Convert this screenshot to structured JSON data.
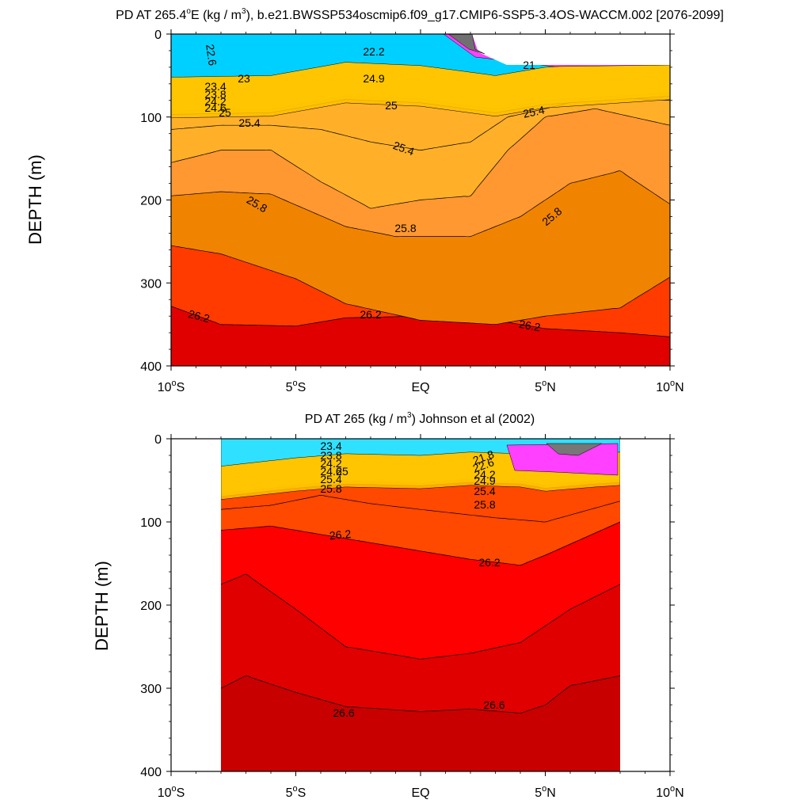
{
  "chart_data": [
    {
      "type": "contour",
      "title_prefix": "PD AT 265.4",
      "title_deg": "o",
      "title_main": "E (kg / m",
      "title_sup": "3",
      "title_suffix": "), b.e21.BWSSP534oscmip6.f09_g17.CMIP6-SSP5-3.4OS-WACCM.002 [2076-2099]",
      "ylabel": "DEPTH (m)",
      "xlim": [
        -10,
        10
      ],
      "ylim": [
        0,
        400
      ],
      "y_reversed": true,
      "x_ticks": [
        {
          "v": -10,
          "num": "10",
          "dir": "S"
        },
        {
          "v": -5,
          "num": "5",
          "dir": "S"
        },
        {
          "v": 0,
          "num": "EQ",
          "dir": ""
        },
        {
          "v": 5,
          "num": "5",
          "dir": "N"
        },
        {
          "v": 10,
          "num": "10",
          "dir": "N"
        }
      ],
      "y_ticks": [
        0,
        100,
        200,
        300,
        400
      ],
      "data_x_range": [
        -10,
        10
      ],
      "contour_labels": [
        "22.6",
        "23",
        "23.4",
        "23.8",
        "24.2",
        "24.6",
        "25",
        "25.4",
        "25.8",
        "26.2",
        "22.2",
        "24.9",
        "21",
        "25.4",
        "25.8",
        "26.2",
        "25.4",
        "25.8",
        "26.2",
        "25"
      ],
      "fill_bands": [
        {
          "level": "< 26.2",
          "depth_profile": [
            [
              -10,
              328
            ],
            [
              -8,
              350
            ],
            [
              -5,
              352
            ],
            [
              -3,
              342
            ],
            [
              0,
              340
            ],
            [
              3,
              345
            ],
            [
              5,
              355
            ],
            [
              8,
              360
            ],
            [
              10,
              365
            ]
          ]
        },
        {
          "level": "25.8–26.2",
          "depth_profile": [
            [
              -10,
              255
            ],
            [
              -8,
              265
            ],
            [
              -5,
              295
            ],
            [
              -3,
              325
            ],
            [
              0,
              345
            ],
            [
              3,
              350
            ],
            [
              5,
              340
            ],
            [
              8,
              330
            ],
            [
              10,
              293
            ]
          ]
        },
        {
          "level": "25.4–25.8",
          "depth_profile": [
            [
              -10,
              195
            ],
            [
              -8,
              190
            ],
            [
              -6,
              193
            ],
            [
              -3,
              232
            ],
            [
              -1,
              244
            ],
            [
              2,
              244
            ],
            [
              4,
              220
            ],
            [
              6,
              180
            ],
            [
              8,
              165
            ],
            [
              10,
              205
            ]
          ]
        },
        {
          "level": "25.0–25.4",
          "depth_profile": [
            [
              -10,
              155
            ],
            [
              -8,
              140
            ],
            [
              -6,
              140
            ],
            [
              -4,
              178
            ],
            [
              -2,
              210
            ],
            [
              0,
              200
            ],
            [
              2,
              195
            ],
            [
              3.5,
              140
            ],
            [
              5,
              100
            ],
            [
              7,
              90
            ],
            [
              10,
              110
            ]
          ]
        },
        {
          "level": "< 25.0",
          "depth_profile": [
            [
              -10,
              115
            ],
            [
              -8,
              110
            ],
            [
              -6,
              110
            ],
            [
              -4,
              115
            ],
            [
              -2,
              130
            ],
            [
              0,
              140
            ],
            [
              2,
              130
            ],
            [
              3.5,
              100
            ],
            [
              5,
              90
            ],
            [
              7,
              75
            ],
            [
              10,
              80
            ]
          ]
        }
      ]
    },
    {
      "type": "contour",
      "title_main": "PD AT 265 (kg / m",
      "title_sup": "3",
      "title_suffix": ") Johnson et al (2002)",
      "ylabel": "DEPTH (m)",
      "xlim": [
        -10,
        10
      ],
      "ylim": [
        0,
        400
      ],
      "y_reversed": true,
      "x_ticks": [
        {
          "v": -10,
          "num": "10",
          "dir": "S"
        },
        {
          "v": -5,
          "num": "5",
          "dir": "S"
        },
        {
          "v": 0,
          "num": "EQ",
          "dir": ""
        },
        {
          "v": 5,
          "num": "5",
          "dir": "N"
        },
        {
          "v": 10,
          "num": "10",
          "dir": "N"
        }
      ],
      "y_ticks": [
        0,
        100,
        200,
        300,
        400
      ],
      "data_x_range": [
        -8,
        8
      ],
      "contour_labels": [
        "23.4",
        "23.8",
        "24.2",
        "24.6",
        "25",
        "25.4",
        "25.8",
        "26.2",
        "25.8",
        "25.4",
        "24.9",
        "24.2",
        "22.6",
        "21.8",
        "26.2",
        "26.6",
        "26.6"
      ],
      "fill_bands": [
        {
          "level": "26.2–26.6",
          "depth_profile": [
            [
              -8,
              300
            ],
            [
              -7,
              285
            ],
            [
              -5,
              305
            ],
            [
              -3,
              322
            ],
            [
              0,
              328
            ],
            [
              2,
              325
            ],
            [
              4,
              330
            ],
            [
              5,
              320
            ],
            [
              6,
              297
            ],
            [
              8,
              285
            ]
          ]
        },
        {
          "level": "26.0–26.2",
          "depth_profile": [
            [
              -8,
              175
            ],
            [
              -7,
              163
            ],
            [
              -5,
              205
            ],
            [
              -3,
              250
            ],
            [
              0,
              265
            ],
            [
              2,
              258
            ],
            [
              4,
              245
            ],
            [
              6,
              205
            ],
            [
              8,
              175
            ]
          ]
        },
        {
          "level": "25.8–26.0",
          "depth_profile": [
            [
              -8,
              110
            ],
            [
              -6,
              105
            ],
            [
              -4,
              115
            ],
            [
              -2,
              125
            ],
            [
              0,
              135
            ],
            [
              2,
              145
            ],
            [
              4,
              152
            ],
            [
              5,
              140
            ],
            [
              8,
              100
            ]
          ]
        },
        {
          "level": "< 25.8",
          "depth_profile": [
            [
              -8,
              85
            ],
            [
              -6,
              80
            ],
            [
              -4,
              68
            ],
            [
              -2,
              78
            ],
            [
              0,
              85
            ],
            [
              3,
              95
            ],
            [
              5,
              100
            ],
            [
              8,
              75
            ]
          ]
        }
      ]
    }
  ]
}
